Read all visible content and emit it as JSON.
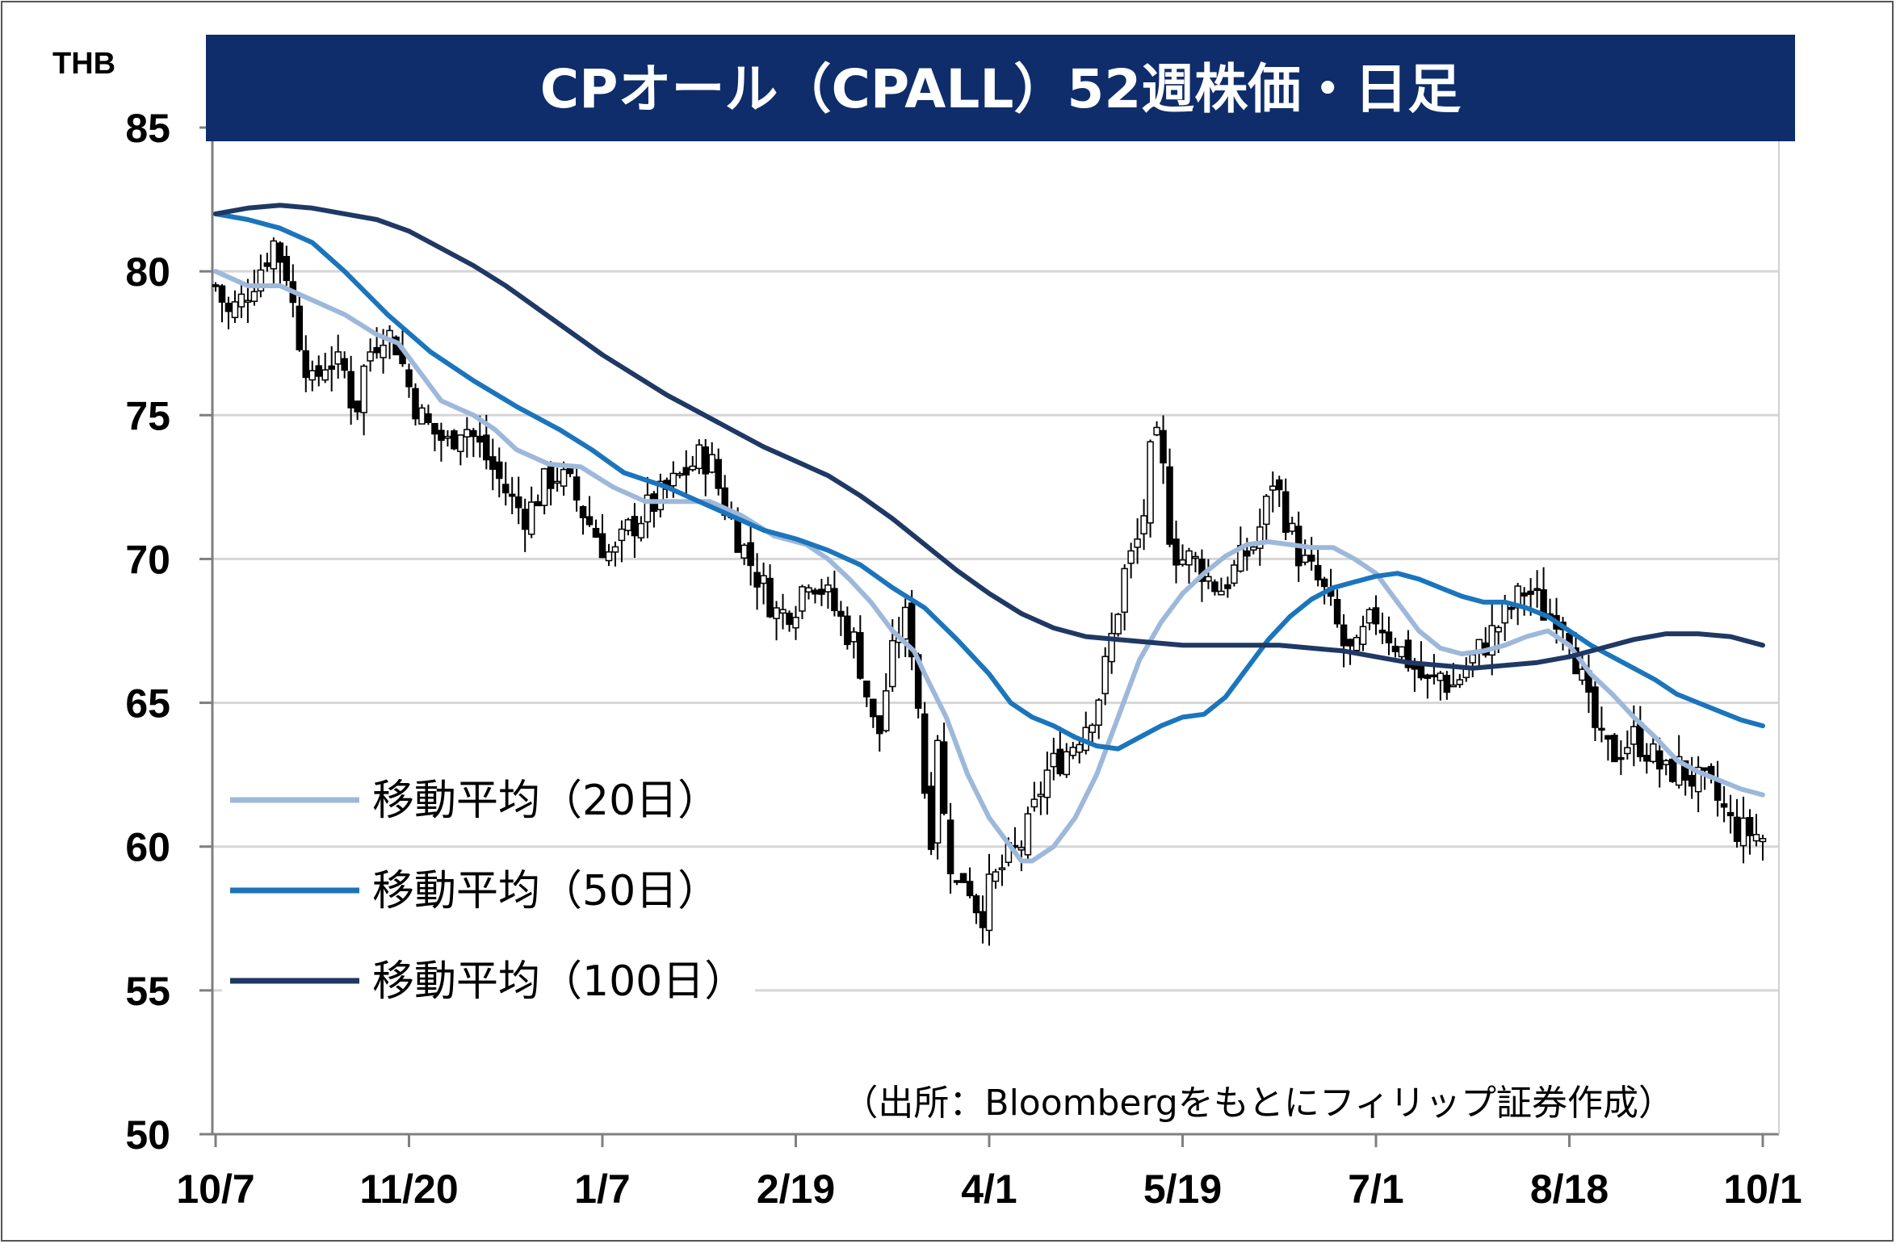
{
  "chart_data": {
    "type": "line",
    "title": "CPオール（CPALL）52週株価・日足",
    "unit_label": "THB",
    "ylim": [
      50,
      85
    ],
    "yticks": [
      50,
      55,
      60,
      65,
      70,
      75,
      80,
      85
    ],
    "x_tick_labels": [
      "10/7",
      "11/20",
      "1/7",
      "2/19",
      "4/1",
      "5/19",
      "7/1",
      "8/18",
      "10/1"
    ],
    "grid": "horizontal",
    "legend_position": "left-middle",
    "source_note": "（出所：Bloombergをもとにフィリップ証券作成）",
    "candlestick_close_anchors": [
      [
        0,
        79.5
      ],
      [
        6,
        78.5
      ],
      [
        12,
        79.0
      ],
      [
        20,
        80.0
      ],
      [
        27,
        81.0
      ],
      [
        33,
        80.0
      ],
      [
        38,
        78.0
      ],
      [
        45,
        76.0
      ],
      [
        52,
        77.0
      ],
      [
        60,
        76.5
      ],
      [
        65,
        75.0
      ],
      [
        70,
        77.0
      ],
      [
        78,
        78.0
      ],
      [
        84,
        77.5
      ],
      [
        90,
        76.0
      ],
      [
        95,
        75.0
      ],
      [
        100,
        74.5
      ],
      [
        108,
        74.0
      ],
      [
        115,
        74.8
      ],
      [
        122,
        74.0
      ],
      [
        130,
        73.0
      ],
      [
        138,
        72.0
      ],
      [
        145,
        71.5
      ],
      [
        152,
        72.5
      ],
      [
        158,
        73.0
      ],
      [
        165,
        72.5
      ],
      [
        172,
        71.5
      ],
      [
        180,
        70.5
      ],
      [
        185,
        70.0
      ],
      [
        192,
        71.0
      ],
      [
        198,
        71.5
      ],
      [
        205,
        72.0
      ],
      [
        212,
        72.5
      ],
      [
        218,
        73.0
      ],
      [
        225,
        73.5
      ],
      [
        230,
        73.5
      ],
      [
        236,
        72.0
      ],
      [
        242,
        71.0
      ],
      [
        248,
        70.0
      ],
      [
        255,
        69.0
      ],
      [
        262,
        68.0
      ],
      [
        270,
        68.5
      ],
      [
        276,
        69.5
      ],
      [
        282,
        69.0
      ],
      [
        290,
        68.0
      ],
      [
        298,
        67.0
      ],
      [
        304,
        65.0
      ],
      [
        308,
        63.5
      ],
      [
        313,
        66.0
      ],
      [
        318,
        67.5
      ],
      [
        322,
        68.0
      ],
      [
        326,
        66.0
      ],
      [
        330,
        62.0
      ],
      [
        333,
        60.5
      ],
      [
        336,
        64.0
      ],
      [
        338,
        61.5
      ],
      [
        341,
        60.0
      ],
      [
        344,
        58.5
      ],
      [
        348,
        59.0
      ],
      [
        352,
        58.5
      ],
      [
        356,
        57.5
      ],
      [
        360,
        58.5
      ],
      [
        364,
        59.0
      ],
      [
        368,
        59.5
      ],
      [
        372,
        59.8
      ],
      [
        376,
        60.2
      ],
      [
        380,
        61.0
      ],
      [
        386,
        62.5
      ],
      [
        392,
        63.0
      ],
      [
        398,
        63.5
      ],
      [
        404,
        64.2
      ],
      [
        410,
        65.0
      ],
      [
        415,
        66.5
      ],
      [
        419,
        68.0
      ],
      [
        423,
        69.5
      ],
      [
        427,
        70.2
      ],
      [
        431,
        71.0
      ],
      [
        435,
        73.5
      ],
      [
        438,
        74.0
      ],
      [
        441,
        73.0
      ],
      [
        444,
        71.0
      ],
      [
        448,
        70.0
      ],
      [
        453,
        70.0
      ],
      [
        458,
        69.8
      ],
      [
        463,
        69.2
      ],
      [
        468,
        69.0
      ],
      [
        473,
        69.5
      ],
      [
        478,
        70.0
      ],
      [
        483,
        70.5
      ],
      [
        488,
        71.5
      ],
      [
        492,
        72.8
      ],
      [
        496,
        72.0
      ],
      [
        500,
        71.0
      ],
      [
        505,
        70.0
      ],
      [
        510,
        69.5
      ],
      [
        515,
        69.0
      ],
      [
        520,
        68.0
      ],
      [
        525,
        67.0
      ],
      [
        530,
        66.5
      ],
      [
        535,
        67.5
      ],
      [
        540,
        68.0
      ],
      [
        545,
        67.5
      ],
      [
        550,
        67.0
      ],
      [
        555,
        66.5
      ],
      [
        560,
        66.0
      ],
      [
        565,
        65.5
      ],
      [
        570,
        66.0
      ],
      [
        575,
        65.5
      ],
      [
        580,
        66.0
      ],
      [
        585,
        66.5
      ],
      [
        590,
        67.0
      ],
      [
        595,
        67.5
      ],
      [
        600,
        68.0
      ],
      [
        605,
        68.5
      ],
      [
        610,
        69.0
      ],
      [
        615,
        68.5
      ],
      [
        620,
        68.0
      ],
      [
        625,
        68.2
      ],
      [
        630,
        67.5
      ],
      [
        635,
        66.0
      ],
      [
        640,
        64.5
      ],
      [
        645,
        63.5
      ],
      [
        650,
        63.2
      ],
      [
        655,
        63.5
      ],
      [
        660,
        63.8
      ],
      [
        665,
        63.5
      ],
      [
        670,
        63.0
      ],
      [
        675,
        62.5
      ],
      [
        680,
        62.8
      ],
      [
        685,
        62.5
      ],
      [
        690,
        62.2
      ],
      [
        695,
        62.0
      ],
      [
        700,
        61.5
      ],
      [
        705,
        60.8
      ],
      [
        710,
        60.5
      ],
      [
        715,
        60.5
      ],
      [
        720,
        60.3
      ]
    ],
    "series": [
      {
        "name": "移動平均（20日）",
        "color": "#9DB8DA",
        "points": [
          [
            0,
            80.0
          ],
          [
            15,
            79.5
          ],
          [
            30,
            79.5
          ],
          [
            45,
            79.0
          ],
          [
            60,
            78.5
          ],
          [
            75,
            77.8
          ],
          [
            85,
            77.5
          ],
          [
            95,
            76.5
          ],
          [
            105,
            75.5
          ],
          [
            120,
            75.0
          ],
          [
            130,
            74.5
          ],
          [
            140,
            73.8
          ],
          [
            155,
            73.3
          ],
          [
            170,
            73.2
          ],
          [
            185,
            72.5
          ],
          [
            200,
            72.0
          ],
          [
            215,
            72.0
          ],
          [
            230,
            72.0
          ],
          [
            245,
            71.5
          ],
          [
            260,
            70.8
          ],
          [
            275,
            70.5
          ],
          [
            285,
            70.0
          ],
          [
            295,
            69.3
          ],
          [
            305,
            68.5
          ],
          [
            315,
            67.5
          ],
          [
            325,
            66.8
          ],
          [
            330,
            66.0
          ],
          [
            340,
            64.5
          ],
          [
            350,
            62.5
          ],
          [
            360,
            61.0
          ],
          [
            370,
            60.0
          ],
          [
            375,
            59.5
          ],
          [
            380,
            59.5
          ],
          [
            390,
            60.0
          ],
          [
            400,
            61.0
          ],
          [
            410,
            62.5
          ],
          [
            420,
            64.5
          ],
          [
            430,
            66.5
          ],
          [
            440,
            67.8
          ],
          [
            450,
            68.8
          ],
          [
            460,
            69.5
          ],
          [
            470,
            70.1
          ],
          [
            480,
            70.5
          ],
          [
            490,
            70.6
          ],
          [
            500,
            70.5
          ],
          [
            510,
            70.4
          ],
          [
            520,
            70.4
          ],
          [
            530,
            70.0
          ],
          [
            540,
            69.5
          ],
          [
            550,
            68.5
          ],
          [
            560,
            67.5
          ],
          [
            570,
            66.9
          ],
          [
            580,
            66.7
          ],
          [
            590,
            66.8
          ],
          [
            600,
            67.0
          ],
          [
            610,
            67.3
          ],
          [
            620,
            67.5
          ],
          [
            630,
            67.0
          ],
          [
            640,
            66.0
          ],
          [
            650,
            65.3
          ],
          [
            660,
            64.5
          ],
          [
            670,
            63.8
          ],
          [
            680,
            63.0
          ],
          [
            690,
            62.6
          ],
          [
            700,
            62.3
          ],
          [
            710,
            62.0
          ],
          [
            720,
            61.8
          ]
        ]
      },
      {
        "name": "移動平均（50日）",
        "color": "#1B75BC",
        "points": [
          [
            0,
            82.0
          ],
          [
            15,
            81.8
          ],
          [
            30,
            81.5
          ],
          [
            45,
            81.0
          ],
          [
            60,
            80.0
          ],
          [
            80,
            78.5
          ],
          [
            100,
            77.2
          ],
          [
            120,
            76.2
          ],
          [
            140,
            75.3
          ],
          [
            160,
            74.5
          ],
          [
            175,
            73.8
          ],
          [
            190,
            73.0
          ],
          [
            210,
            72.5
          ],
          [
            225,
            72.0
          ],
          [
            240,
            71.5
          ],
          [
            255,
            71.0
          ],
          [
            270,
            70.7
          ],
          [
            285,
            70.3
          ],
          [
            300,
            69.8
          ],
          [
            315,
            69.0
          ],
          [
            330,
            68.3
          ],
          [
            345,
            67.2
          ],
          [
            360,
            66.0
          ],
          [
            370,
            65.0
          ],
          [
            380,
            64.5
          ],
          [
            390,
            64.2
          ],
          [
            400,
            63.8
          ],
          [
            410,
            63.5
          ],
          [
            420,
            63.4
          ],
          [
            430,
            63.8
          ],
          [
            440,
            64.2
          ],
          [
            450,
            64.5
          ],
          [
            460,
            64.6
          ],
          [
            470,
            65.2
          ],
          [
            480,
            66.2
          ],
          [
            490,
            67.2
          ],
          [
            500,
            68.0
          ],
          [
            510,
            68.6
          ],
          [
            520,
            69.0
          ],
          [
            530,
            69.2
          ],
          [
            540,
            69.4
          ],
          [
            550,
            69.5
          ],
          [
            560,
            69.3
          ],
          [
            570,
            69.0
          ],
          [
            580,
            68.7
          ],
          [
            590,
            68.5
          ],
          [
            600,
            68.5
          ],
          [
            610,
            68.3
          ],
          [
            620,
            68.0
          ],
          [
            630,
            67.5
          ],
          [
            640,
            67.0
          ],
          [
            650,
            66.6
          ],
          [
            660,
            66.2
          ],
          [
            670,
            65.8
          ],
          [
            680,
            65.3
          ],
          [
            690,
            65.0
          ],
          [
            700,
            64.7
          ],
          [
            710,
            64.4
          ],
          [
            720,
            64.2
          ]
        ]
      },
      {
        "name": "移動平均（100日）",
        "color": "#1F3864",
        "points": [
          [
            0,
            82.0
          ],
          [
            15,
            82.2
          ],
          [
            30,
            82.3
          ],
          [
            45,
            82.2
          ],
          [
            60,
            82.0
          ],
          [
            75,
            81.8
          ],
          [
            90,
            81.4
          ],
          [
            105,
            80.8
          ],
          [
            120,
            80.2
          ],
          [
            135,
            79.5
          ],
          [
            150,
            78.7
          ],
          [
            165,
            77.9
          ],
          [
            180,
            77.1
          ],
          [
            195,
            76.4
          ],
          [
            210,
            75.7
          ],
          [
            225,
            75.1
          ],
          [
            240,
            74.5
          ],
          [
            255,
            73.9
          ],
          [
            270,
            73.4
          ],
          [
            285,
            72.9
          ],
          [
            300,
            72.2
          ],
          [
            315,
            71.4
          ],
          [
            330,
            70.5
          ],
          [
            345,
            69.6
          ],
          [
            360,
            68.8
          ],
          [
            375,
            68.1
          ],
          [
            390,
            67.6
          ],
          [
            405,
            67.3
          ],
          [
            420,
            67.2
          ],
          [
            435,
            67.1
          ],
          [
            450,
            67.0
          ],
          [
            465,
            67.0
          ],
          [
            480,
            67.0
          ],
          [
            495,
            67.0
          ],
          [
            510,
            66.9
          ],
          [
            525,
            66.8
          ],
          [
            540,
            66.6
          ],
          [
            555,
            66.4
          ],
          [
            570,
            66.3
          ],
          [
            585,
            66.2
          ],
          [
            600,
            66.3
          ],
          [
            615,
            66.4
          ],
          [
            630,
            66.6
          ],
          [
            645,
            66.9
          ],
          [
            660,
            67.2
          ],
          [
            675,
            67.4
          ],
          [
            690,
            67.4
          ],
          [
            705,
            67.3
          ],
          [
            720,
            67.0
          ]
        ]
      }
    ]
  }
}
